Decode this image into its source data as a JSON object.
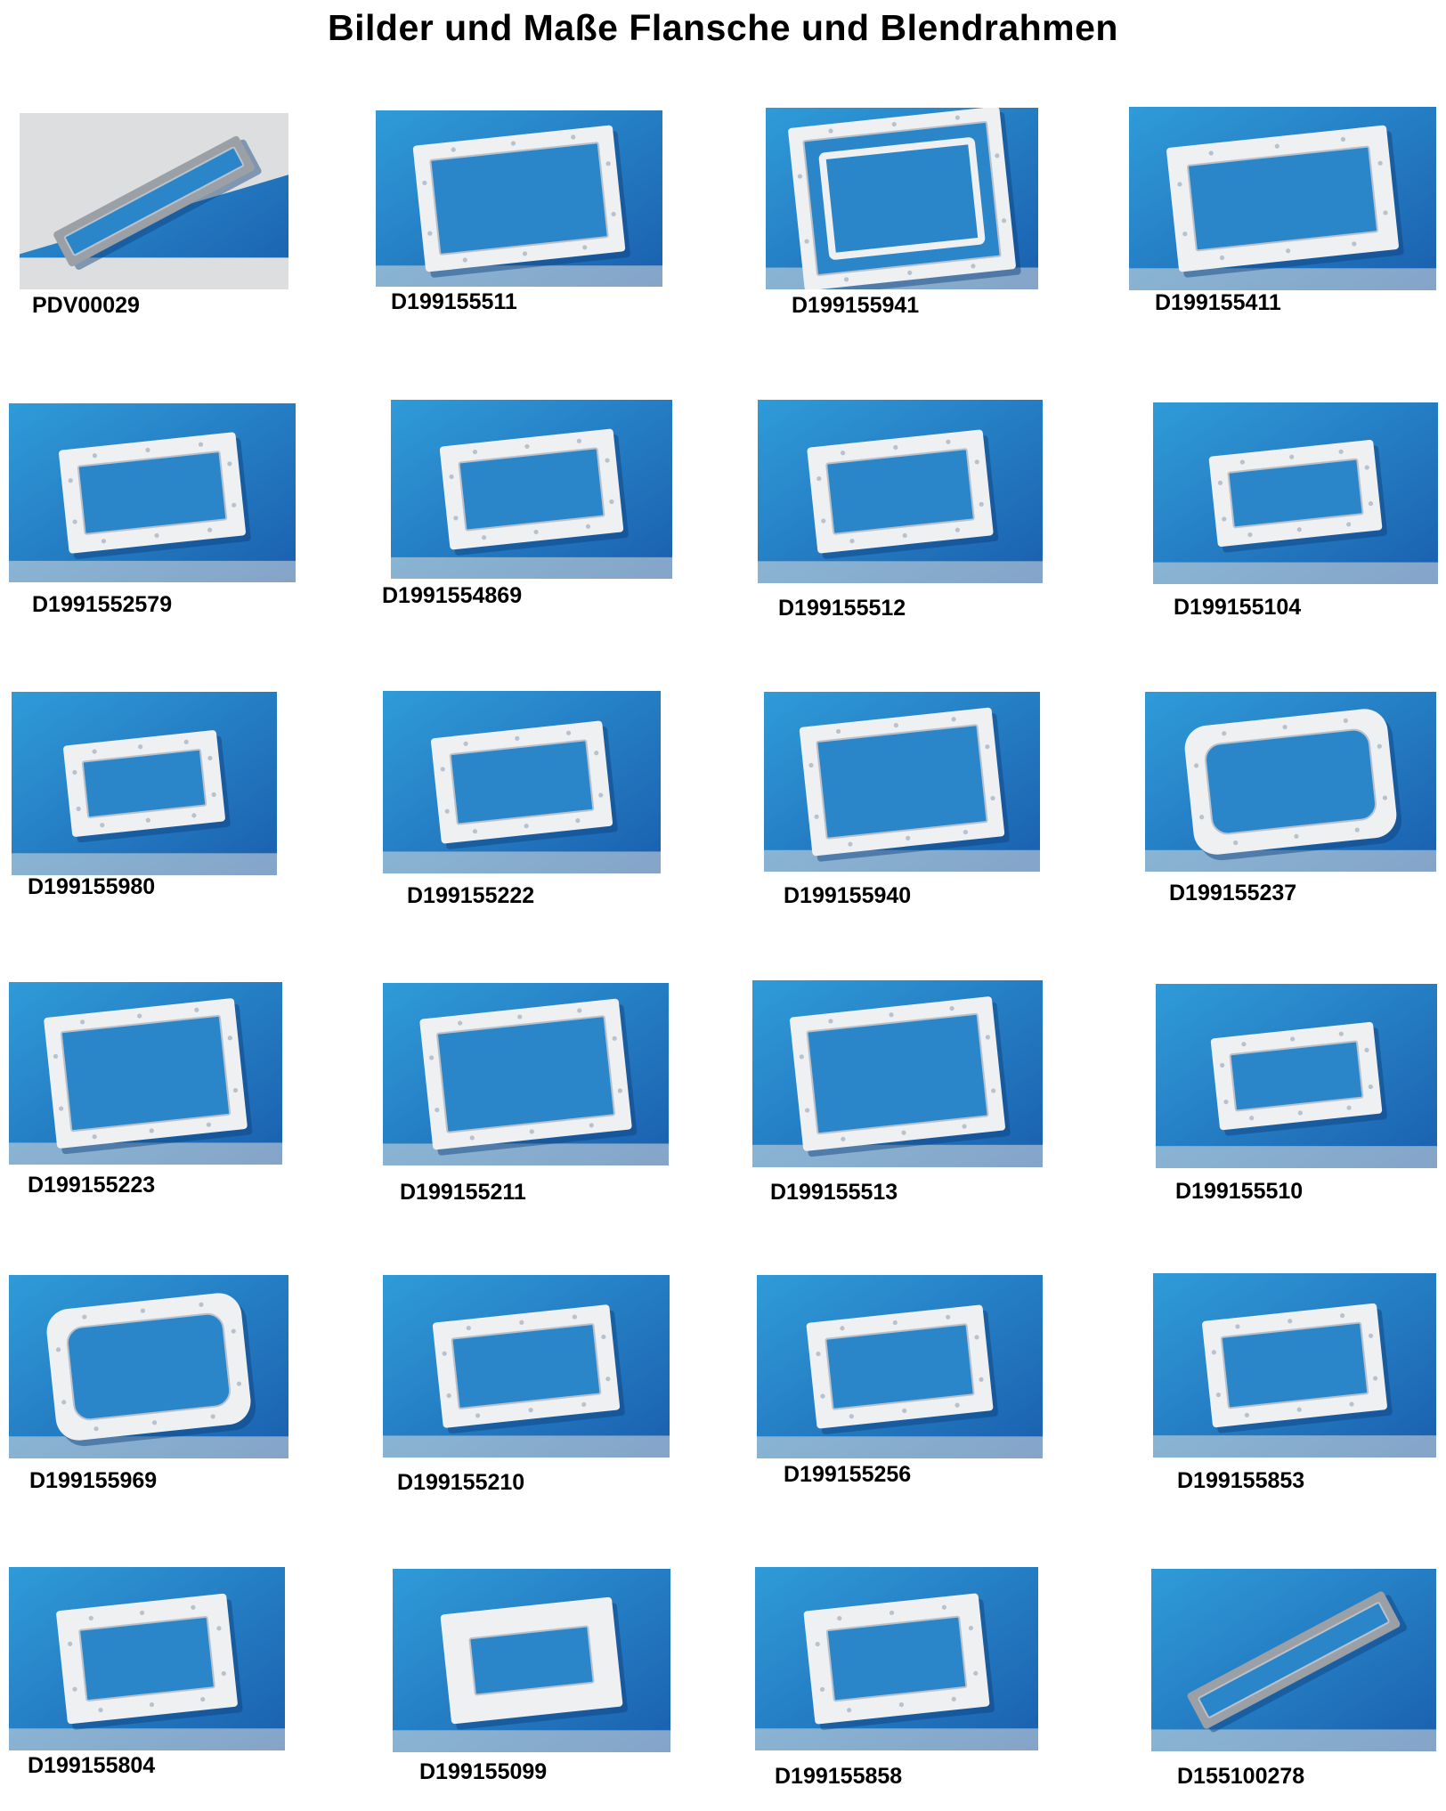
{
  "page_title": "Bilder und Maße Flansche und Blendrahmen",
  "colors": {
    "cloth_light": "#2f9bd8",
    "cloth_dark": "#1a5fae",
    "frame_white": "#eef0f2",
    "frame_shadow": "#b9c2cc",
    "steel": "#9aa0a6",
    "background_grey": "#dcdedf"
  },
  "items": [
    {
      "code": "PDV00029",
      "kind": "steel-strip"
    },
    {
      "code": "D199155511",
      "kind": "long-frame"
    },
    {
      "code": "D199155941",
      "kind": "double-frame"
    },
    {
      "code": "D199155411",
      "kind": "wide-frame"
    },
    {
      "code": "D1991552579",
      "kind": "frame"
    },
    {
      "code": "D1991554869",
      "kind": "frame"
    },
    {
      "code": "D199155512",
      "kind": "frame"
    },
    {
      "code": "D199155104",
      "kind": "small-frame"
    },
    {
      "code": "D199155980",
      "kind": "small-frame"
    },
    {
      "code": "D199155222",
      "kind": "frame"
    },
    {
      "code": "D199155940",
      "kind": "long-frame"
    },
    {
      "code": "D199155237",
      "kind": "rounded-frame"
    },
    {
      "code": "D199155223",
      "kind": "long-frame"
    },
    {
      "code": "D199155211",
      "kind": "long-frame"
    },
    {
      "code": "D199155513",
      "kind": "long-frame"
    },
    {
      "code": "D199155510",
      "kind": "small-frame"
    },
    {
      "code": "D199155969",
      "kind": "rounded-frame"
    },
    {
      "code": "D199155210",
      "kind": "frame"
    },
    {
      "code": "D199155256",
      "kind": "frame"
    },
    {
      "code": "D199155853",
      "kind": "frame"
    },
    {
      "code": "D199155804",
      "kind": "square-frame"
    },
    {
      "code": "D199155099",
      "kind": "deep-frame"
    },
    {
      "code": "D199155858",
      "kind": "square-frame"
    },
    {
      "code": "D155100278",
      "kind": "steel-strip"
    }
  ]
}
